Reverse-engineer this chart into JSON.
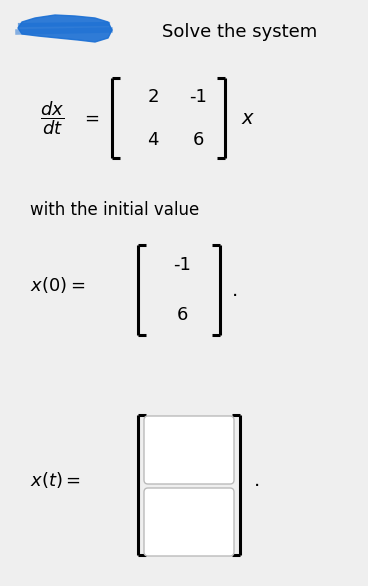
{
  "bg_color": "#efefef",
  "title": "Solve the system",
  "matrix_a": [
    [
      2,
      -1
    ],
    [
      4,
      6
    ]
  ],
  "initial_vector": [
    -1,
    6
  ],
  "fig_width": 3.68,
  "fig_height": 5.86,
  "dpi": 100,
  "blue_color": "#1a6fd4"
}
